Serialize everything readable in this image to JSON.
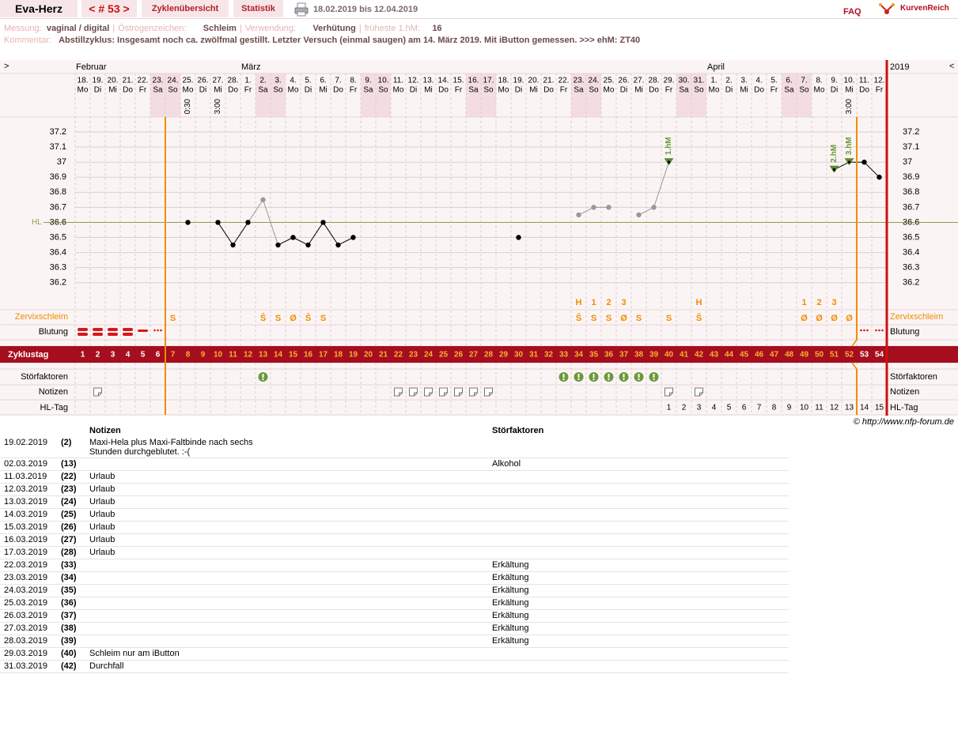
{
  "header": {
    "title": "Eva-Herz",
    "cycle": "< # 53 >",
    "tabs": [
      "Zyklenübersicht",
      "Statistik"
    ],
    "date_range": "18.02.2019 bis 12.04.2019",
    "faq": "FAQ",
    "brand": "KurvenReich"
  },
  "info": {
    "fields": [
      {
        "label": "Messung:",
        "value": "vaginal / digital"
      },
      {
        "label": "Östrogenzeichen:",
        "value": "Schleim"
      },
      {
        "label": "Verwendung:",
        "value": "Verhütung"
      },
      {
        "label": "früheste 1.hM:",
        "value": 16
      }
    ],
    "comment_label": "Kommentar:",
    "comment": "Abstillzyklus: Insgesamt noch ca. zwölfmal gestillt. Letzter Versuch (einmal saugen) am 14. März 2019. Mit iButton gemessen. >>> ehM: ZT40"
  },
  "chart_data": {
    "type": "line",
    "nav_left": ">",
    "nav_right": "<",
    "year": "2019",
    "months": [
      "Februar",
      null,
      null,
      null,
      null,
      null,
      null,
      null,
      null,
      null,
      null,
      "März",
      null,
      null,
      null,
      null,
      null,
      null,
      null,
      null,
      null,
      null,
      null,
      null,
      null,
      null,
      null,
      null,
      null,
      null,
      null,
      null,
      null,
      null,
      null,
      null,
      null,
      null,
      null,
      null,
      null,
      null,
      "April",
      null,
      null,
      null,
      null,
      null,
      null,
      null,
      null,
      null,
      null,
      null
    ],
    "x": [
      "18.",
      "19.",
      "20.",
      "21.",
      "22.",
      "23.",
      "24.",
      "25.",
      "26.",
      "27.",
      "28.",
      "1.",
      "2.",
      "3.",
      "4.",
      "5.",
      "6.",
      "7.",
      "8.",
      "9.",
      "10.",
      "11.",
      "12.",
      "13.",
      "14.",
      "15.",
      "16.",
      "17.",
      "18.",
      "19.",
      "20.",
      "21.",
      "22.",
      "23.",
      "24.",
      "25.",
      "26.",
      "27.",
      "28.",
      "29.",
      "30.",
      "31.",
      "1.",
      "2.",
      "3.",
      "4.",
      "5.",
      "6.",
      "7.",
      "8.",
      "9.",
      "10.",
      "11.",
      "12."
    ],
    "weekdays": [
      "Mo",
      "Di",
      "Mi",
      "Do",
      "Fr",
      "Sa",
      "So",
      "Mo",
      "Di",
      "Mi",
      "Do",
      "Fr",
      "Sa",
      "So",
      "Mo",
      "Di",
      "Mi",
      "Do",
      "Fr",
      "Sa",
      "So",
      "Mo",
      "Di",
      "Mi",
      "Do",
      "Fr",
      "Sa",
      "So",
      "Mo",
      "Di",
      "Mi",
      "Do",
      "Fr",
      "Sa",
      "So",
      "Mo",
      "Di",
      "Mi",
      "Do",
      "Fr",
      "Sa",
      "So",
      "Mo",
      "Di",
      "Mi",
      "Do",
      "Fr",
      "Sa",
      "So",
      "Mo",
      "Di",
      "Mi",
      "Do",
      "Fr"
    ],
    "time_labels": [
      null,
      null,
      null,
      null,
      null,
      null,
      null,
      "0:30",
      null,
      "3:00",
      null,
      null,
      null,
      null,
      null,
      null,
      null,
      null,
      null,
      null,
      null,
      null,
      null,
      null,
      null,
      null,
      null,
      null,
      null,
      null,
      null,
      null,
      null,
      null,
      null,
      null,
      null,
      null,
      null,
      null,
      null,
      null,
      null,
      null,
      null,
      null,
      null,
      null,
      null,
      null,
      null,
      "3:00",
      null,
      null
    ],
    "values": [
      null,
      null,
      null,
      null,
      null,
      null,
      null,
      36.6,
      null,
      36.6,
      36.45,
      36.6,
      36.75,
      36.45,
      36.5,
      36.45,
      36.6,
      36.45,
      36.5,
      null,
      null,
      null,
      null,
      null,
      null,
      null,
      null,
      null,
      null,
      36.5,
      null,
      null,
      null,
      36.65,
      36.7,
      36.7,
      null,
      36.65,
      36.7,
      37,
      null,
      null,
      null,
      null,
      null,
      null,
      null,
      null,
      null,
      null,
      36.95,
      37,
      37,
      36.9
    ],
    "disturbed": [
      false,
      false,
      false,
      false,
      false,
      false,
      false,
      false,
      false,
      false,
      false,
      false,
      true,
      false,
      false,
      false,
      false,
      false,
      false,
      false,
      false,
      false,
      false,
      false,
      false,
      false,
      false,
      false,
      false,
      false,
      false,
      false,
      true,
      true,
      true,
      true,
      true,
      true,
      true,
      false,
      false,
      false,
      false,
      false,
      false,
      false,
      false,
      false,
      false,
      false,
      false,
      false,
      false,
      false
    ],
    "notes": [
      false,
      true,
      false,
      false,
      false,
      false,
      false,
      false,
      false,
      false,
      false,
      false,
      false,
      false,
      false,
      false,
      false,
      false,
      false,
      false,
      false,
      true,
      true,
      true,
      true,
      true,
      true,
      true,
      false,
      false,
      false,
      false,
      false,
      false,
      false,
      false,
      false,
      false,
      false,
      true,
      false,
      true,
      false,
      false,
      false,
      false,
      false,
      false,
      false,
      false,
      false,
      false,
      false,
      false
    ],
    "hm_labels": [
      null,
      null,
      null,
      null,
      null,
      null,
      null,
      null,
      null,
      null,
      null,
      null,
      null,
      null,
      null,
      null,
      null,
      null,
      null,
      null,
      null,
      null,
      null,
      null,
      null,
      null,
      null,
      null,
      null,
      null,
      null,
      null,
      null,
      null,
      null,
      null,
      null,
      null,
      null,
      "1.hM",
      null,
      null,
      null,
      null,
      null,
      null,
      null,
      null,
      null,
      null,
      "2.hM",
      "3.hM",
      null,
      null
    ],
    "mucus_peak": [
      null,
      null,
      null,
      null,
      null,
      null,
      null,
      null,
      null,
      null,
      null,
      null,
      null,
      null,
      null,
      null,
      null,
      null,
      null,
      null,
      null,
      null,
      null,
      null,
      null,
      null,
      null,
      null,
      null,
      null,
      null,
      null,
      null,
      "H",
      "1",
      "2",
      "3",
      null,
      null,
      null,
      null,
      "H",
      null,
      null,
      null,
      null,
      null,
      null,
      "1",
      "2",
      "3",
      null,
      null,
      null
    ],
    "mucus": [
      null,
      null,
      null,
      null,
      null,
      null,
      "S",
      null,
      null,
      null,
      null,
      null,
      "Ŝ",
      "S",
      "Ø",
      "Ŝ",
      "S",
      null,
      null,
      null,
      null,
      null,
      null,
      null,
      null,
      null,
      null,
      null,
      null,
      null,
      null,
      null,
      null,
      "Ŝ",
      "S",
      "S",
      "Ø",
      "S",
      null,
      "S",
      null,
      "Ŝ",
      null,
      null,
      null,
      null,
      null,
      null,
      "Ø",
      "Ø",
      "Ø",
      "Ø",
      null,
      null
    ],
    "cycle_days": [
      1,
      2,
      3,
      4,
      5,
      6,
      7,
      8,
      9,
      10,
      11,
      12,
      13,
      14,
      15,
      16,
      17,
      18,
      19,
      20,
      21,
      22,
      23,
      24,
      25,
      26,
      27,
      28,
      29,
      30,
      31,
      32,
      33,
      34,
      35,
      36,
      37,
      38,
      39,
      40,
      41,
      42,
      43,
      44,
      45,
      46,
      47,
      48,
      49,
      50,
      51,
      52,
      53,
      54
    ],
    "hl_days": [
      null,
      null,
      null,
      null,
      null,
      null,
      null,
      null,
      null,
      null,
      null,
      null,
      null,
      null,
      null,
      null,
      null,
      null,
      null,
      null,
      null,
      null,
      null,
      null,
      null,
      null,
      null,
      null,
      null,
      null,
      null,
      null,
      null,
      null,
      null,
      null,
      null,
      null,
      null,
      1,
      2,
      3,
      4,
      5,
      6,
      7,
      8,
      9,
      10,
      11,
      12,
      13,
      14,
      15
    ],
    "ylim": [
      36.02,
      37.3
    ],
    "yticks": [
      37.2,
      37.1,
      37,
      36.9,
      36.8,
      36.7,
      36.6,
      36.5,
      36.4,
      36.3,
      36.2
    ],
    "hl_label": "HL",
    "hl_value": 36.6,
    "grid": true,
    "row_labels": {
      "mucus": "Zervixschleim",
      "bleeding": "Blutung",
      "cycle_day": "Zyklustag",
      "disturbances": "Störfaktoren",
      "notes": "Notizen",
      "hl_day": "HL-Tag"
    }
  },
  "copyright": "© http://www.nfp-forum.de",
  "table": {
    "headers": [
      "Notizen",
      "Störfaktoren"
    ],
    "rows": [
      [
        "19.02.2019",
        "(2)",
        "Maxi-Hela plus Maxi-Faltbinde nach sechs Stunden durchgeblutet. :-(",
        null
      ],
      [
        "02.03.2019",
        "(13)",
        null,
        "Alkohol"
      ],
      [
        "11.03.2019",
        "(22)",
        "Urlaub",
        null
      ],
      [
        "12.03.2019",
        "(23)",
        "Urlaub",
        null
      ],
      [
        "13.03.2019",
        "(24)",
        "Urlaub",
        null
      ],
      [
        "14.03.2019",
        "(25)",
        "Urlaub",
        null
      ],
      [
        "15.03.2019",
        "(26)",
        "Urlaub",
        null
      ],
      [
        "16.03.2019",
        "(27)",
        "Urlaub",
        null
      ],
      [
        "17.03.2019",
        "(28)",
        "Urlaub",
        null
      ],
      [
        "22.03.2019",
        "(33)",
        null,
        "Erkältung"
      ],
      [
        "23.03.2019",
        "(34)",
        null,
        "Erkältung"
      ],
      [
        "24.03.2019",
        "(35)",
        null,
        "Erkältung"
      ],
      [
        "25.03.2019",
        "(36)",
        null,
        "Erkältung"
      ],
      [
        "26.03.2019",
        "(37)",
        null,
        "Erkältung"
      ],
      [
        "27.03.2019",
        "(38)",
        null,
        "Erkältung"
      ],
      [
        "28.03.2019",
        "(39)",
        null,
        "Erkältung"
      ],
      [
        "29.03.2019",
        "(40)",
        "Schleim nur am iButton",
        null
      ],
      [
        "31.03.2019",
        "(42)",
        "Durchfall",
        null
      ]
    ]
  }
}
